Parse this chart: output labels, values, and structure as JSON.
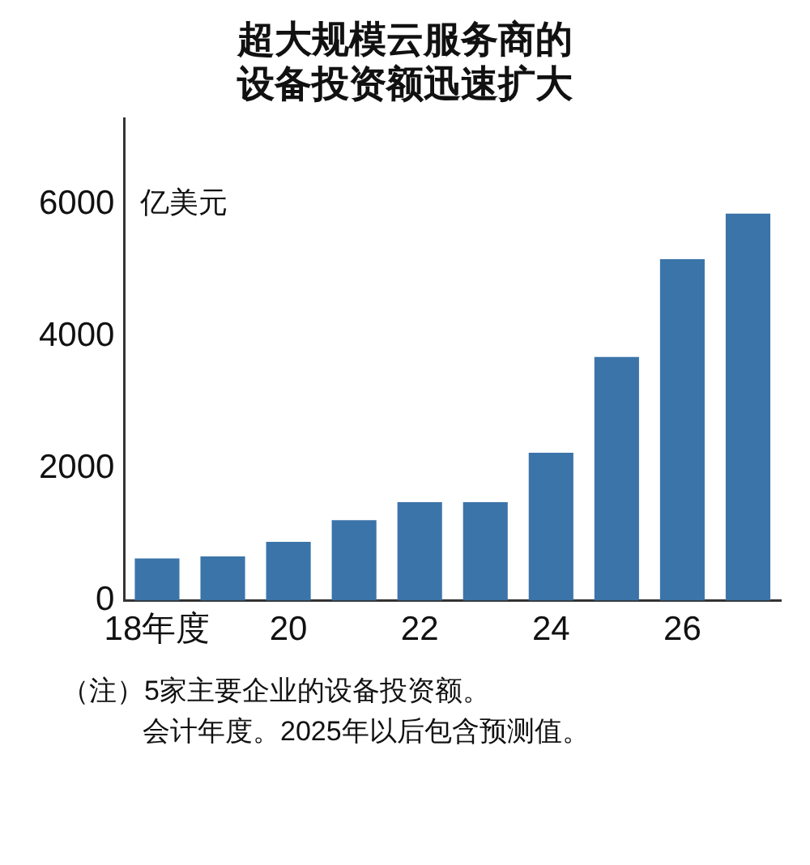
{
  "chart_data": {
    "type": "bar",
    "title": [
      "超大规模云服务商的",
      "设备投资额迅速扩大"
    ],
    "ylabel": "亿美元",
    "categories": [
      "18年度",
      null,
      "20",
      null,
      "22",
      null,
      "24",
      null,
      "26",
      null
    ],
    "values": [
      640,
      670,
      890,
      1220,
      1490,
      1490,
      2240,
      3690,
      5170,
      5860
    ],
    "color": "#3b74a9",
    "ylim": [
      0,
      7300
    ],
    "yticks": [
      0,
      2000,
      4000,
      6000
    ],
    "grid": false,
    "legend": false,
    "annotations": [
      "（注）5家主要企业的设备投资额。",
      "会计年度。2025年以后包含预测值。"
    ]
  }
}
